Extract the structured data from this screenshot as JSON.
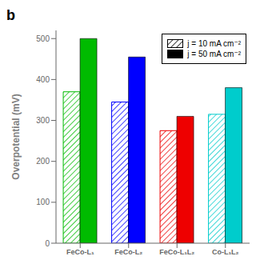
{
  "chart_data": {
    "type": "bar",
    "title": "b",
    "ylabel": "Overpotential (mV)",
    "categories": [
      "FeCo-L₁",
      "FeCo-L₂",
      "FeCo-L₁L₂",
      "Co-L₁L₂"
    ],
    "series": [
      {
        "name": "j = 10 mA cm⁻²",
        "values": [
          370,
          345,
          275,
          315
        ]
      },
      {
        "name": "j = 50 mA cm⁻²",
        "values": [
          500,
          455,
          310,
          380
        ]
      }
    ],
    "colors": [
      "#00bb00",
      "#0000ff",
      "#ee0000",
      "#00cccc"
    ],
    "ylim": [
      0,
      520
    ],
    "yticks": [
      0,
      100,
      200,
      300,
      400,
      500
    ],
    "grid": false,
    "legend": "upper right"
  }
}
